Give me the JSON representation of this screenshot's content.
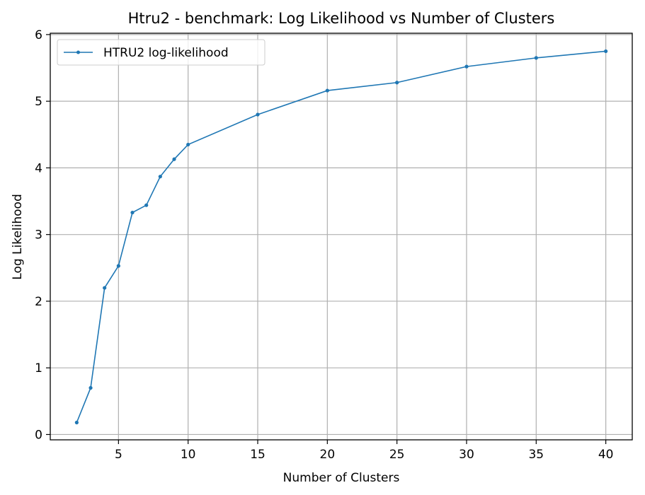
{
  "colors": {
    "series": "#1f77b4",
    "grid": "#b0b0b0",
    "axis": "#000000",
    "legend_border": "#cccccc",
    "background": "#ffffff"
  },
  "chart_data": {
    "type": "line",
    "title": "Htru2 - benchmark: Log Likelihood vs Number of Clusters",
    "xlabel": "Number of Clusters",
    "ylabel": "Log Likelihood",
    "xlim": [
      0.1,
      41.9
    ],
    "ylim": [
      -0.08,
      6.02
    ],
    "xticks": [
      5,
      10,
      15,
      20,
      25,
      30,
      35,
      40
    ],
    "yticks": [
      0,
      1,
      2,
      3,
      4,
      5,
      6
    ],
    "grid": true,
    "legend_position": "top-left",
    "series": [
      {
        "name": "HTRU2 log-likelihood",
        "marker": "circle",
        "x": [
          2,
          3,
          4,
          5,
          6,
          7,
          8,
          9,
          10,
          15,
          20,
          25,
          30,
          35,
          40
        ],
        "y": [
          0.18,
          0.7,
          2.2,
          2.53,
          3.33,
          3.44,
          3.87,
          4.13,
          4.35,
          4.8,
          5.16,
          5.28,
          5.52,
          5.65,
          5.75
        ]
      }
    ]
  }
}
